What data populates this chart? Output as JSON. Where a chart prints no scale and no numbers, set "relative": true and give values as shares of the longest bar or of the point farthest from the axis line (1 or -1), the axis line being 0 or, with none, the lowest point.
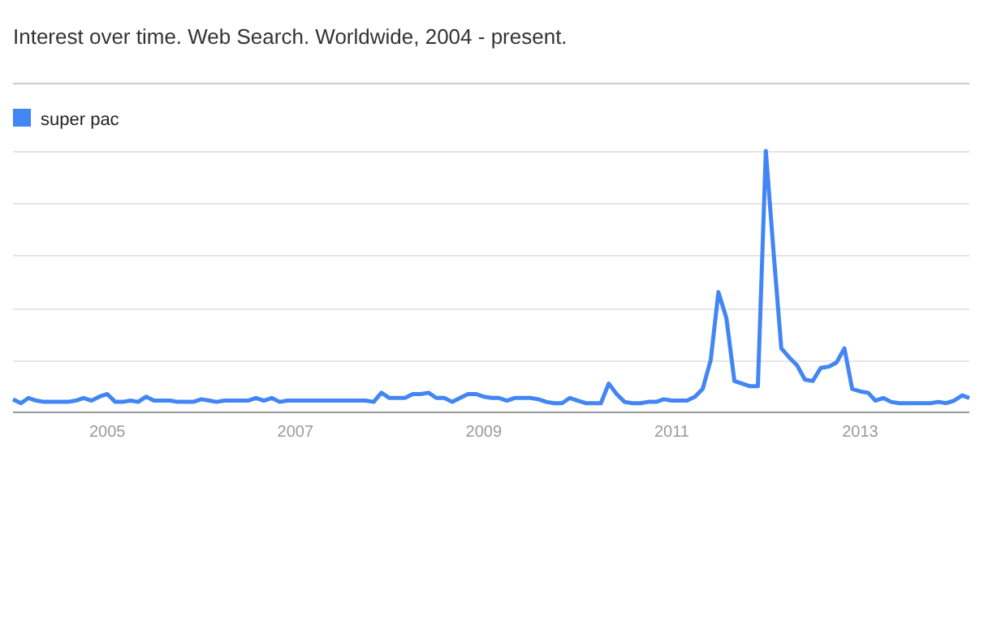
{
  "chart_data": {
    "type": "line",
    "title": "Interest over time. Web Search. Worldwide, 2004 - present.",
    "relative": true,
    "grid": true,
    "legend": "top left",
    "x": [
      "2004-01",
      "2004-02",
      "2004-03",
      "2004-04",
      "2004-05",
      "2004-06",
      "2004-07",
      "2004-08",
      "2004-09",
      "2004-10",
      "2004-11",
      "2004-12",
      "2005-01",
      "2005-02",
      "2005-03",
      "2005-04",
      "2005-05",
      "2005-06",
      "2005-07",
      "2005-08",
      "2005-09",
      "2005-10",
      "2005-11",
      "2005-12",
      "2006-01",
      "2006-02",
      "2006-03",
      "2006-04",
      "2006-05",
      "2006-06",
      "2006-07",
      "2006-08",
      "2006-09",
      "2006-10",
      "2006-11",
      "2006-12",
      "2007-01",
      "2007-02",
      "2007-03",
      "2007-04",
      "2007-05",
      "2007-06",
      "2007-07",
      "2007-08",
      "2007-09",
      "2007-10",
      "2007-11",
      "2007-12",
      "2008-01",
      "2008-02",
      "2008-03",
      "2008-04",
      "2008-05",
      "2008-06",
      "2008-07",
      "2008-08",
      "2008-09",
      "2008-10",
      "2008-11",
      "2008-12",
      "2009-01",
      "2009-02",
      "2009-03",
      "2009-04",
      "2009-05",
      "2009-06",
      "2009-07",
      "2009-08",
      "2009-09",
      "2009-10",
      "2009-11",
      "2009-12",
      "2010-01",
      "2010-02",
      "2010-03",
      "2010-04",
      "2010-05",
      "2010-06",
      "2010-07",
      "2010-08",
      "2010-09",
      "2010-10",
      "2010-11",
      "2010-12",
      "2011-01",
      "2011-02",
      "2011-03",
      "2011-04",
      "2011-05",
      "2011-06",
      "2011-07",
      "2011-08",
      "2011-09",
      "2011-10",
      "2011-11",
      "2011-12",
      "2012-01",
      "2012-02",
      "2012-03",
      "2012-04",
      "2012-05",
      "2012-06",
      "2012-07",
      "2012-08",
      "2012-09",
      "2012-10",
      "2012-11",
      "2012-12",
      "2013-01",
      "2013-02",
      "2013-03",
      "2013-04",
      "2013-05",
      "2013-06",
      "2013-07",
      "2013-08",
      "2013-09",
      "2013-10",
      "2013-11",
      "2013-12",
      "2014-01",
      "2014-02",
      "2014-03"
    ],
    "xlim": [
      "2004-01",
      "2014-03"
    ],
    "xticks": [
      {
        "value": "2005-01",
        "label": "2005"
      },
      {
        "value": "2007-01",
        "label": "2007"
      },
      {
        "value": "2009-01",
        "label": "2009"
      },
      {
        "value": "2011-01",
        "label": "2011"
      },
      {
        "value": "2013-01",
        "label": "2013"
      }
    ],
    "series": [
      {
        "name": "super pac",
        "color": "#4285f4",
        "values": [
          0.05,
          0.035,
          0.055,
          0.045,
          0.04,
          0.04,
          0.04,
          0.04,
          0.045,
          0.055,
          0.045,
          0.06,
          0.07,
          0.04,
          0.04,
          0.045,
          0.04,
          0.06,
          0.045,
          0.045,
          0.045,
          0.04,
          0.04,
          0.04,
          0.05,
          0.045,
          0.04,
          0.045,
          0.045,
          0.045,
          0.045,
          0.055,
          0.045,
          0.055,
          0.04,
          0.045,
          0.045,
          0.045,
          0.045,
          0.045,
          0.045,
          0.045,
          0.045,
          0.045,
          0.045,
          0.045,
          0.04,
          0.075,
          0.055,
          0.055,
          0.055,
          0.07,
          0.07,
          0.075,
          0.055,
          0.055,
          0.04,
          0.055,
          0.07,
          0.07,
          0.06,
          0.055,
          0.055,
          0.045,
          0.055,
          0.055,
          0.055,
          0.05,
          0.04,
          0.035,
          0.035,
          0.055,
          0.045,
          0.035,
          0.035,
          0.035,
          0.11,
          0.07,
          0.04,
          0.035,
          0.035,
          0.04,
          0.04,
          0.05,
          0.045,
          0.045,
          0.045,
          0.06,
          0.09,
          0.2,
          0.46,
          0.36,
          0.12,
          0.11,
          0.1,
          0.1,
          1.0,
          0.6,
          0.245,
          0.21,
          0.18,
          0.125,
          0.12,
          0.17,
          0.175,
          0.19,
          0.245,
          0.09,
          0.08,
          0.075,
          0.045,
          0.055,
          0.04,
          0.035,
          0.035,
          0.035,
          0.035,
          0.035,
          0.04,
          0.035,
          0.045,
          0.065,
          0.055
        ]
      }
    ]
  }
}
